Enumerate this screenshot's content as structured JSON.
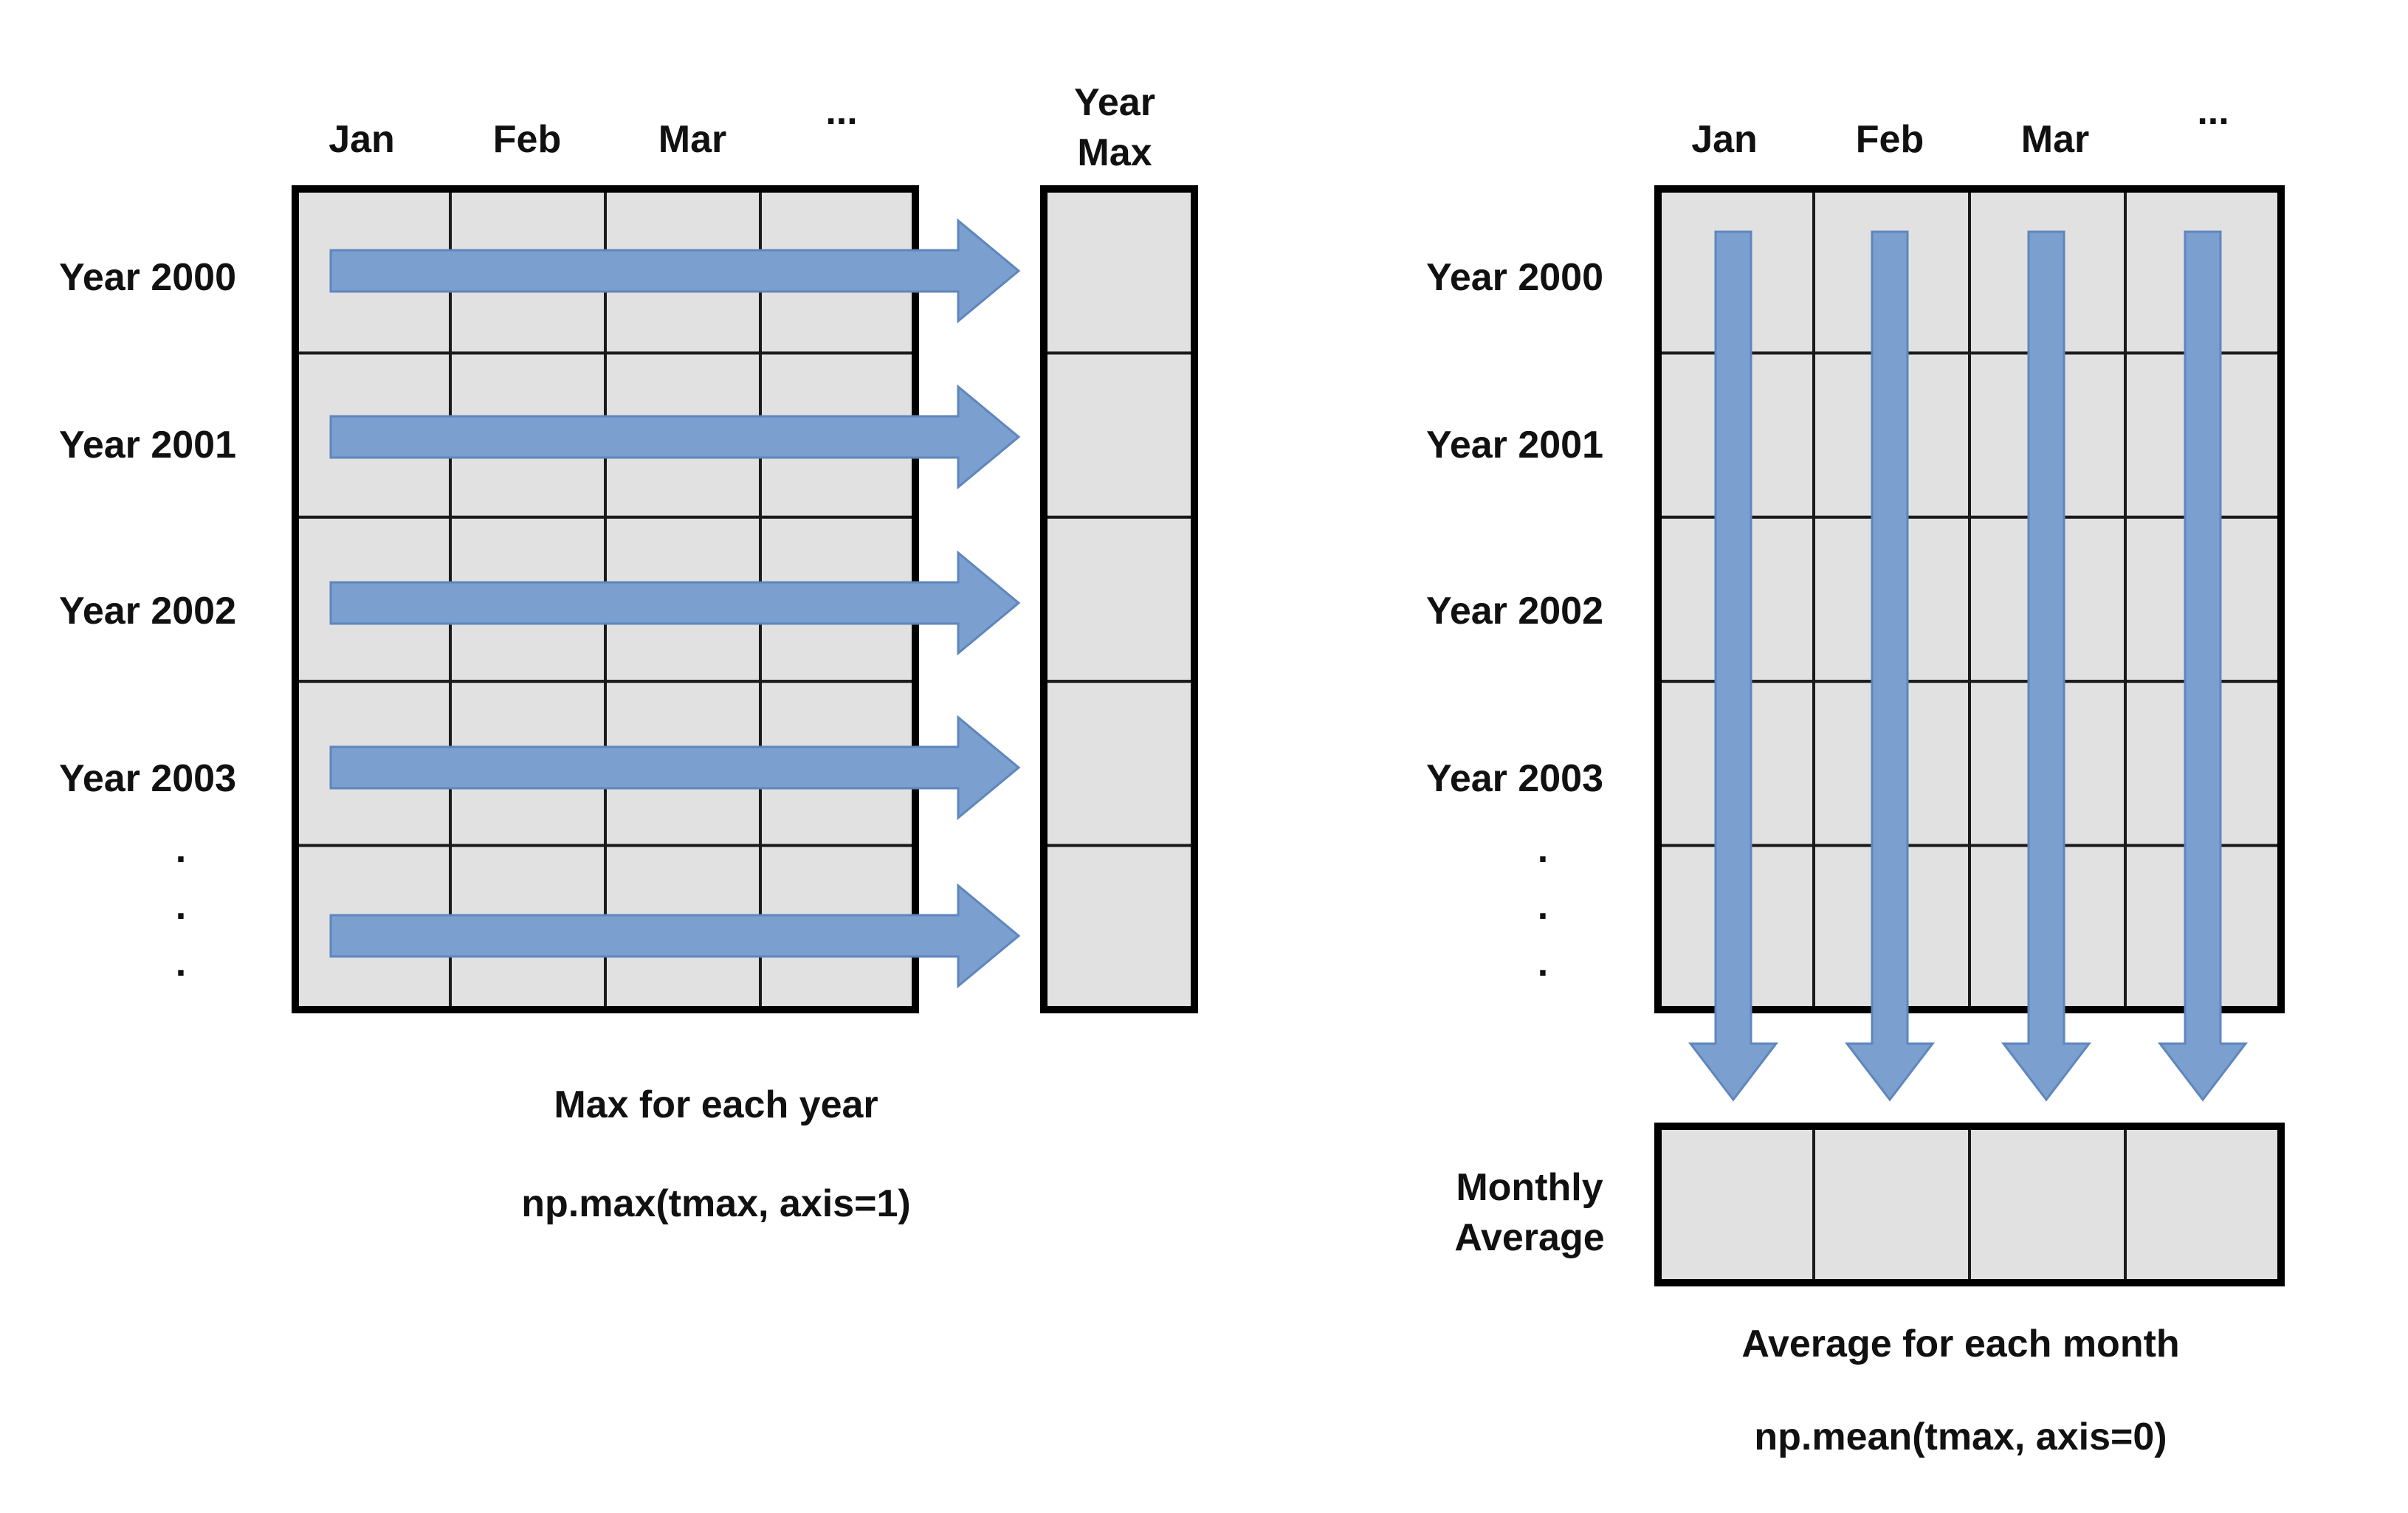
{
  "left_panel": {
    "columns": [
      "Jan",
      "Feb",
      "Mar",
      "..."
    ],
    "result_header": [
      "Year",
      "Max"
    ],
    "rows": [
      "Year 2000",
      "Year 2001",
      "Year 2002",
      "Year 2003"
    ],
    "row_ellipsis": ".",
    "caption": "Max for each year",
    "code": "np.max(tmax, axis=1)"
  },
  "right_panel": {
    "columns": [
      "Jan",
      "Feb",
      "Mar",
      "..."
    ],
    "rows": [
      "Year 2000",
      "Year 2001",
      "Year 2002",
      "Year 2003"
    ],
    "row_ellipsis": ".",
    "result_label": [
      "Monthly",
      "Average"
    ],
    "caption": "Average for each month",
    "code": "np.mean(tmax, axis=0)"
  },
  "colors": {
    "cell_fill": "#e1e1e1",
    "grid_line": "#1a1a1a",
    "arrow_fill": "#7b9fcf",
    "arrow_stroke": "#5f86bd"
  }
}
